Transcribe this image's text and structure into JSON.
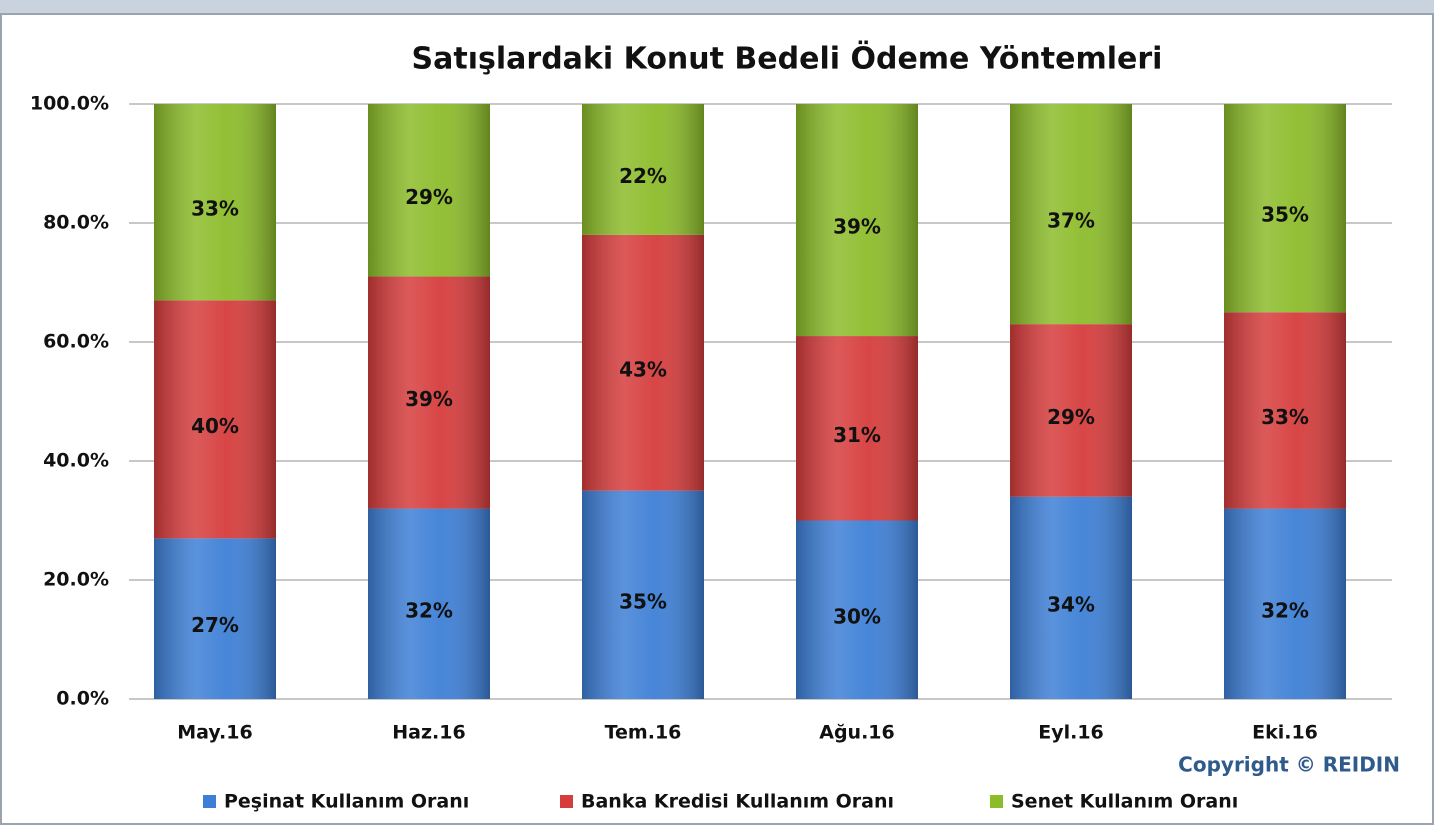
{
  "chart_data": {
    "type": "stacked_bar",
    "title": "Satışlardaki Konut Bedeli Ödeme Yöntemleri",
    "categories": [
      "May.16",
      "Haz.16",
      "Tem.16",
      "Ağu.16",
      "Eyl.16",
      "Eki.16"
    ],
    "series": [
      {
        "name": "Peşinat Kullanım Oranı",
        "color": "#3d7fd6",
        "values": [
          27,
          32,
          35,
          30,
          34,
          32
        ],
        "value_labels": [
          "27%",
          "32%",
          "35%",
          "30%",
          "34%",
          "32%"
        ]
      },
      {
        "name": "Banka Kredisi Kullanım Oranı",
        "color": "#d63c3c",
        "values": [
          40,
          39,
          43,
          31,
          29,
          33
        ],
        "value_labels": [
          "40%",
          "39%",
          "43%",
          "31%",
          "29%",
          "33%"
        ]
      },
      {
        "name": "Senet Kullanım Oranı",
        "color": "#8cbc2a",
        "values": [
          33,
          29,
          22,
          39,
          37,
          35
        ],
        "value_labels": [
          "33%",
          "29%",
          "22%",
          "39%",
          "37%",
          "35%"
        ]
      }
    ],
    "ylim": [
      0,
      100
    ],
    "yticks": [
      {
        "value": 0,
        "label": "0.0%"
      },
      {
        "value": 20,
        "label": "20.0%"
      },
      {
        "value": 40,
        "label": "40.0%"
      },
      {
        "value": 60,
        "label": "60.0%"
      },
      {
        "value": 80,
        "label": "80.0%"
      },
      {
        "value": 100,
        "label": "100.0%"
      }
    ],
    "grid": true,
    "legend": "bottom",
    "annotation": "Copyright © REIDIN"
  }
}
